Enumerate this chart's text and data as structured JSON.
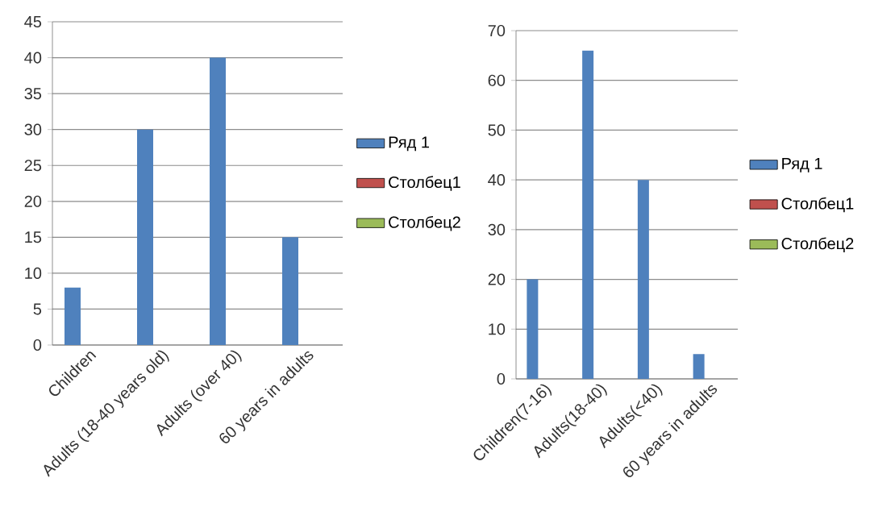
{
  "chart_data": [
    {
      "type": "bar",
      "categories": [
        "Children",
        "Adults (18-40 years old)",
        "Adults (over 40)",
        "60 years in adults"
      ],
      "series": [
        {
          "name": "Ряд 1",
          "color": "#4f81bd",
          "values": [
            8,
            30,
            40,
            15
          ]
        },
        {
          "name": "Столбец1",
          "color": "#c0504d",
          "values": [
            null,
            null,
            null,
            null
          ]
        },
        {
          "name": "Столбец2",
          "color": "#9bbb59",
          "values": [
            null,
            null,
            null,
            null
          ]
        }
      ],
      "ylim": [
        0,
        45
      ],
      "yticks": [
        0,
        5,
        10,
        15,
        20,
        25,
        30,
        35,
        40,
        45
      ],
      "grid": "y",
      "legend": "right"
    },
    {
      "type": "bar",
      "categories": [
        "Children(7-16)",
        "Adults(18-40)",
        "Adults(<40)",
        "60 years in adults"
      ],
      "series": [
        {
          "name": "Ряд 1",
          "color": "#4f81bd",
          "values": [
            20,
            66,
            40,
            5
          ]
        },
        {
          "name": "Столбец1",
          "color": "#c0504d",
          "values": [
            null,
            null,
            null,
            null
          ]
        },
        {
          "name": "Столбец2",
          "color": "#9bbb59",
          "values": [
            null,
            null,
            null,
            null
          ]
        }
      ],
      "ylim": [
        0,
        70
      ],
      "yticks": [
        0,
        10,
        20,
        30,
        40,
        50,
        60,
        70
      ],
      "grid": "y",
      "legend": "right"
    }
  ]
}
